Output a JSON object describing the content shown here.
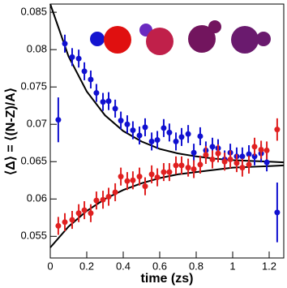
{
  "chart_data": {
    "type": "scatter",
    "x_label": "time (zs)",
    "y_label": "⟨Δ⟩ = ⟨(N-Z)/A⟩",
    "xlim": [
      0,
      1.28
    ],
    "ylim": [
      0.0521,
      0.0861
    ],
    "xticks": [
      0,
      0.2,
      0.4,
      0.6,
      0.8,
      1,
      1.2
    ],
    "yticks": [
      0.055,
      0.06,
      0.065,
      0.07,
      0.075,
      0.08,
      0.085
    ],
    "series": [
      {
        "color": "#1010d0",
        "x": [
          0.044,
          0.08,
          0.12,
          0.156,
          0.187,
          0.222,
          0.253,
          0.289,
          0.32,
          0.356,
          0.387,
          0.422,
          0.453,
          0.489,
          0.52,
          0.556,
          0.587,
          0.622,
          0.653,
          0.689,
          0.72,
          0.756,
          0.787,
          0.822,
          0.853,
          0.889,
          0.92,
          0.956,
          0.987,
          1.022,
          1.053,
          1.089,
          1.12,
          1.156,
          1.187,
          1.244
        ],
        "values": [
          0.0706,
          0.0808,
          0.079,
          0.0788,
          0.0771,
          0.076,
          0.0742,
          0.073,
          0.0731,
          0.0721,
          0.0705,
          0.07,
          0.0692,
          0.0685,
          0.0696,
          0.0677,
          0.0679,
          0.0695,
          0.0689,
          0.0677,
          0.0683,
          0.0687,
          0.0662,
          0.0684,
          0.0665,
          0.067,
          0.0668,
          0.0653,
          0.0662,
          0.0657,
          0.0657,
          0.066,
          0.0657,
          0.0661,
          0.0649,
          0.0582
        ],
        "errors": [
          0.003,
          0.0012,
          0.0012,
          0.0012,
          0.0012,
          0.0012,
          0.0012,
          0.0012,
          0.0012,
          0.0012,
          0.0012,
          0.0012,
          0.0012,
          0.0012,
          0.0012,
          0.0012,
          0.0012,
          0.0012,
          0.0012,
          0.0012,
          0.0012,
          0.0012,
          0.0012,
          0.0012,
          0.0012,
          0.0012,
          0.0012,
          0.0012,
          0.0012,
          0.0012,
          0.0012,
          0.0012,
          0.0012,
          0.0012,
          0.0012,
          0.004
        ]
      },
      {
        "color": "#e02020",
        "x": [
          0.044,
          0.08,
          0.12,
          0.156,
          0.187,
          0.222,
          0.253,
          0.289,
          0.32,
          0.356,
          0.387,
          0.422,
          0.453,
          0.489,
          0.52,
          0.556,
          0.587,
          0.622,
          0.653,
          0.689,
          0.72,
          0.756,
          0.787,
          0.822,
          0.853,
          0.889,
          0.92,
          0.956,
          0.987,
          1.022,
          1.053,
          1.089,
          1.12,
          1.156,
          1.187,
          1.244
        ],
        "values": [
          0.0564,
          0.0569,
          0.0572,
          0.0581,
          0.0585,
          0.0581,
          0.0598,
          0.0599,
          0.0603,
          0.0609,
          0.063,
          0.0624,
          0.0625,
          0.063,
          0.0617,
          0.0633,
          0.0629,
          0.0636,
          0.0636,
          0.0645,
          0.0645,
          0.0642,
          0.064,
          0.0646,
          0.0659,
          0.0653,
          0.0661,
          0.065,
          0.0653,
          0.0648,
          0.0642,
          0.0646,
          0.067,
          0.0666,
          0.0665,
          0.0693
        ],
        "errors": [
          0.0012,
          0.0012,
          0.0012,
          0.0012,
          0.0012,
          0.0012,
          0.0012,
          0.0012,
          0.0012,
          0.0012,
          0.0012,
          0.0012,
          0.0012,
          0.0012,
          0.0012,
          0.0012,
          0.0012,
          0.0012,
          0.0012,
          0.0012,
          0.0012,
          0.0012,
          0.0012,
          0.0012,
          0.0012,
          0.0012,
          0.0012,
          0.0012,
          0.0012,
          0.0012,
          0.0012,
          0.0012,
          0.0012,
          0.0012,
          0.0012,
          0.0015
        ]
      }
    ],
    "fits": [
      {
        "color": "#000000",
        "x": [
          0,
          0.1,
          0.2,
          0.3,
          0.4,
          0.5,
          0.6,
          0.7,
          0.8,
          0.9,
          1,
          1.1,
          1.2,
          1.28
        ],
        "values": [
          0.0861,
          0.0791,
          0.0744,
          0.0712,
          0.0691,
          0.0677,
          0.0667,
          0.0661,
          0.0657,
          0.0654,
          0.0652,
          0.0651,
          0.065,
          0.0649
        ]
      },
      {
        "color": "#000000",
        "x": [
          0,
          0.1,
          0.2,
          0.3,
          0.4,
          0.5,
          0.6,
          0.7,
          0.8,
          0.9,
          1,
          1.1,
          1.2,
          1.28
        ],
        "values": [
          0.0535,
          0.0563,
          0.0584,
          0.06,
          0.0612,
          0.0621,
          0.0628,
          0.0633,
          0.0636,
          0.0639,
          0.0642,
          0.0643,
          0.0644,
          0.0645
        ]
      }
    ]
  }
}
